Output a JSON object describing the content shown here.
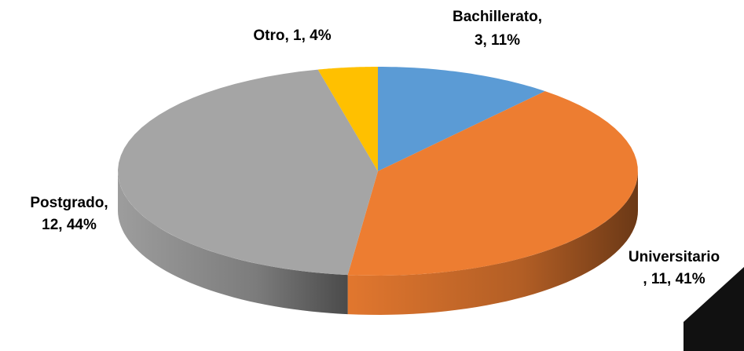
{
  "chart_data": {
    "type": "pie",
    "values": [
      3,
      11,
      12,
      1
    ],
    "value_labels": [
      [
        "Bachillerato,",
        "3, 11%"
      ],
      [
        "Universitario",
        ", 11, 41%"
      ],
      [
        "Postgrado,",
        "12, 44%"
      ],
      [
        "Otro, 1, 4%"
      ]
    ],
    "colors": [
      "#5b9bd5",
      "#ed7d31",
      "#a5a5a5",
      "#ffc000"
    ]
  }
}
